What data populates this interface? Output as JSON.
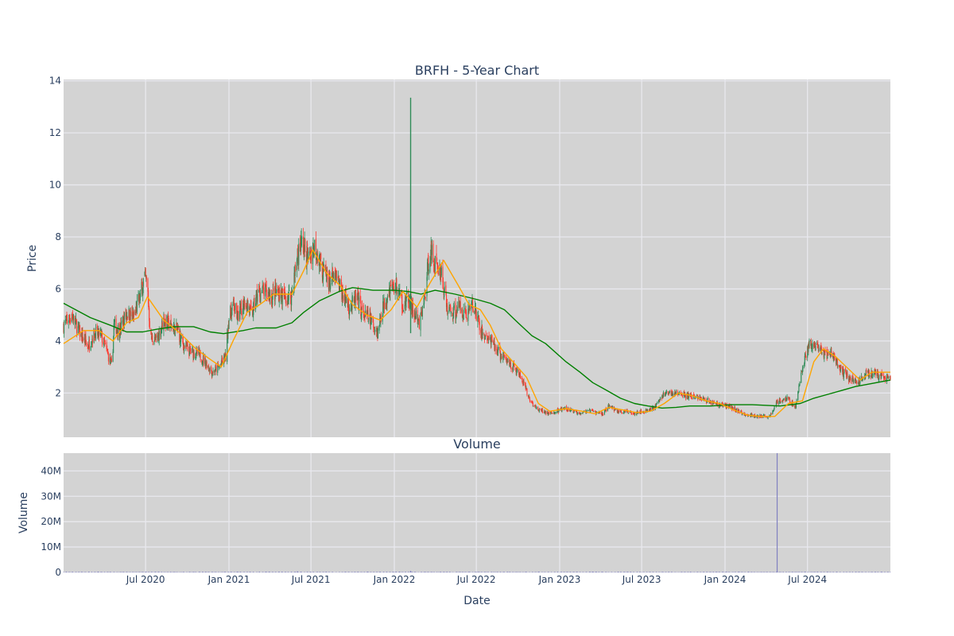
{
  "chart_data": {
    "type": "candlestick",
    "title": "BRFH - 5-Year Chart",
    "xlabel": "Date",
    "x_tick_labels": [
      "Jul 2020",
      "Jan 2021",
      "Jul 2021",
      "Jan 2022",
      "Jul 2022",
      "Jan 2023",
      "Jul 2023",
      "Jan 2024",
      "Jul 2024"
    ],
    "x_ticks": [
      "2020-07-01",
      "2021-01-01",
      "2021-07-01",
      "2022-01-01",
      "2022-07-01",
      "2023-01-01",
      "2023-07-01",
      "2024-01-01",
      "2024-07-01"
    ],
    "x_range": [
      "2020-01-02",
      "2024-12-31"
    ],
    "grid": true,
    "legend": "none",
    "colors": {
      "plot_bg": "#d3d3d3",
      "grid": "#e8e8ee",
      "increasing": "#2e8b57",
      "decreasing": "#ff3b30",
      "ma_short": "#ffa500",
      "ma_long": "#008000",
      "volume": "#8080c0"
    },
    "price_panel": {
      "ylabel": "Price",
      "ylim": [
        0.3,
        14.05
      ],
      "yticks": [
        2,
        4,
        6,
        8,
        10,
        12,
        14
      ],
      "ytick_labels": [
        "2",
        "4",
        "6",
        "8",
        "10",
        "12",
        "14"
      ],
      "close_path": [
        {
          "date": "2020-01-02",
          "close": 4.6
        },
        {
          "date": "2020-01-20",
          "close": 5.0
        },
        {
          "date": "2020-02-10",
          "close": 4.2
        },
        {
          "date": "2020-02-25",
          "close": 3.8
        },
        {
          "date": "2020-03-10",
          "close": 4.3
        },
        {
          "date": "2020-03-25",
          "close": 4.2
        },
        {
          "date": "2020-04-08",
          "close": 3.5
        },
        {
          "date": "2020-04-18",
          "close": 3.0
        },
        {
          "date": "2020-04-22",
          "close": 4.6
        },
        {
          "date": "2020-05-05",
          "close": 4.4
        },
        {
          "date": "2020-05-20",
          "close": 5.1
        },
        {
          "date": "2020-06-05",
          "close": 4.9
        },
        {
          "date": "2020-06-20",
          "close": 5.8
        },
        {
          "date": "2020-06-28",
          "close": 6.5
        },
        {
          "date": "2020-07-05",
          "close": 6.1
        },
        {
          "date": "2020-07-12",
          "close": 4.1
        },
        {
          "date": "2020-07-25",
          "close": 4.0
        },
        {
          "date": "2020-08-10",
          "close": 4.8
        },
        {
          "date": "2020-08-25",
          "close": 4.6
        },
        {
          "date": "2020-09-10",
          "close": 4.4
        },
        {
          "date": "2020-09-20",
          "close": 3.9
        },
        {
          "date": "2020-10-05",
          "close": 3.6
        },
        {
          "date": "2020-10-25",
          "close": 3.5
        },
        {
          "date": "2020-11-10",
          "close": 3.2
        },
        {
          "date": "2020-11-25",
          "close": 2.8
        },
        {
          "date": "2020-12-10",
          "close": 3.0
        },
        {
          "date": "2020-12-25",
          "close": 3.4
        },
        {
          "date": "2020-12-31",
          "close": 4.8
        },
        {
          "date": "2021-01-10",
          "close": 5.4
        },
        {
          "date": "2021-01-20",
          "close": 4.9
        },
        {
          "date": "2021-02-05",
          "close": 5.6
        },
        {
          "date": "2021-02-20",
          "close": 5.0
        },
        {
          "date": "2021-03-05",
          "close": 5.8
        },
        {
          "date": "2021-03-20",
          "close": 5.9
        },
        {
          "date": "2021-04-05",
          "close": 5.7
        },
        {
          "date": "2021-04-20",
          "close": 5.9
        },
        {
          "date": "2021-05-05",
          "close": 5.6
        },
        {
          "date": "2021-05-20",
          "close": 5.8
        },
        {
          "date": "2021-06-01",
          "close": 7.3
        },
        {
          "date": "2021-06-10",
          "close": 7.8
        },
        {
          "date": "2021-06-25",
          "close": 7.2
        },
        {
          "date": "2021-07-10",
          "close": 7.7
        },
        {
          "date": "2021-07-25",
          "close": 6.8
        },
        {
          "date": "2021-08-10",
          "close": 6.3
        },
        {
          "date": "2021-08-25",
          "close": 6.4
        },
        {
          "date": "2021-09-10",
          "close": 5.8
        },
        {
          "date": "2021-09-25",
          "close": 5.3
        },
        {
          "date": "2021-10-10",
          "close": 5.6
        },
        {
          "date": "2021-10-25",
          "close": 5.0
        },
        {
          "date": "2021-11-10",
          "close": 4.8
        },
        {
          "date": "2021-11-25",
          "close": 4.3
        },
        {
          "date": "2021-12-05",
          "close": 5.2
        },
        {
          "date": "2021-12-20",
          "close": 6.0
        },
        {
          "date": "2022-01-05",
          "close": 6.1
        },
        {
          "date": "2022-01-20",
          "close": 5.4
        },
        {
          "date": "2022-02-01",
          "close": 5.6
        },
        {
          "date": "2022-02-10",
          "close": 5.2
        },
        {
          "date": "2022-02-25",
          "close": 4.6
        },
        {
          "date": "2022-03-10",
          "close": 5.8
        },
        {
          "date": "2022-03-20",
          "close": 7.5
        },
        {
          "date": "2022-04-01",
          "close": 7.0
        },
        {
          "date": "2022-04-15",
          "close": 6.6
        },
        {
          "date": "2022-04-28",
          "close": 5.2
        },
        {
          "date": "2022-05-10",
          "close": 5.1
        },
        {
          "date": "2022-05-25",
          "close": 5.3
        },
        {
          "date": "2022-06-10",
          "close": 5.0
        },
        {
          "date": "2022-06-20",
          "close": 5.4
        },
        {
          "date": "2022-06-30",
          "close": 5.1
        },
        {
          "date": "2022-07-10",
          "close": 4.4
        },
        {
          "date": "2022-07-25",
          "close": 4.1
        },
        {
          "date": "2022-08-10",
          "close": 3.8
        },
        {
          "date": "2022-08-25",
          "close": 3.4
        },
        {
          "date": "2022-09-10",
          "close": 3.2
        },
        {
          "date": "2022-09-25",
          "close": 2.9
        },
        {
          "date": "2022-10-10",
          "close": 2.5
        },
        {
          "date": "2022-10-25",
          "close": 1.8
        },
        {
          "date": "2022-11-10",
          "close": 1.4
        },
        {
          "date": "2022-11-25",
          "close": 1.3
        },
        {
          "date": "2022-12-10",
          "close": 1.2
        },
        {
          "date": "2023-01-10",
          "close": 1.4
        },
        {
          "date": "2023-02-10",
          "close": 1.25
        },
        {
          "date": "2023-03-10",
          "close": 1.3
        },
        {
          "date": "2023-04-05",
          "close": 1.2
        },
        {
          "date": "2023-04-20",
          "close": 1.5
        },
        {
          "date": "2023-05-10",
          "close": 1.3
        },
        {
          "date": "2023-06-10",
          "close": 1.25
        },
        {
          "date": "2023-07-10",
          "close": 1.3
        },
        {
          "date": "2023-08-01",
          "close": 1.5
        },
        {
          "date": "2023-08-20",
          "close": 2.0
        },
        {
          "date": "2023-09-10",
          "close": 2.0
        },
        {
          "date": "2023-10-10",
          "close": 1.9
        },
        {
          "date": "2023-11-10",
          "close": 1.8
        },
        {
          "date": "2023-12-10",
          "close": 1.6
        },
        {
          "date": "2024-01-10",
          "close": 1.5
        },
        {
          "date": "2024-02-10",
          "close": 1.2
        },
        {
          "date": "2024-03-10",
          "close": 1.1
        },
        {
          "date": "2024-04-10",
          "close": 1.1
        },
        {
          "date": "2024-04-25",
          "close": 1.7
        },
        {
          "date": "2024-05-15",
          "close": 1.8
        },
        {
          "date": "2024-06-05",
          "close": 1.5
        },
        {
          "date": "2024-06-20",
          "close": 3.0
        },
        {
          "date": "2024-07-05",
          "close": 3.9
        },
        {
          "date": "2024-07-20",
          "close": 3.7
        },
        {
          "date": "2024-08-10",
          "close": 3.5
        },
        {
          "date": "2024-08-25",
          "close": 3.5
        },
        {
          "date": "2024-09-10",
          "close": 2.9
        },
        {
          "date": "2024-10-01",
          "close": 2.6
        },
        {
          "date": "2024-10-20",
          "close": 2.4
        },
        {
          "date": "2024-11-10",
          "close": 2.8
        },
        {
          "date": "2024-12-01",
          "close": 2.7
        },
        {
          "date": "2024-12-31",
          "close": 2.5
        }
      ],
      "spikes": [
        {
          "date": "2022-02-06",
          "high": 13.35,
          "low": 4.3
        }
      ],
      "ma_short": [
        {
          "date": "2020-01-02",
          "value": 3.9
        },
        {
          "date": "2020-02-15",
          "value": 4.4
        },
        {
          "date": "2020-03-20",
          "value": 4.4
        },
        {
          "date": "2020-04-20",
          "value": 4.0
        },
        {
          "date": "2020-05-20",
          "value": 4.7
        },
        {
          "date": "2020-06-15",
          "value": 4.9
        },
        {
          "date": "2020-07-05",
          "value": 5.7
        },
        {
          "date": "2020-08-10",
          "value": 4.8
        },
        {
          "date": "2020-09-15",
          "value": 4.3
        },
        {
          "date": "2020-10-20",
          "value": 3.7
        },
        {
          "date": "2020-11-20",
          "value": 3.3
        },
        {
          "date": "2020-12-15",
          "value": 3.0
        },
        {
          "date": "2021-01-10",
          "value": 4.0
        },
        {
          "date": "2021-02-10",
          "value": 5.1
        },
        {
          "date": "2021-03-10",
          "value": 5.4
        },
        {
          "date": "2021-04-10",
          "value": 5.8
        },
        {
          "date": "2021-05-20",
          "value": 5.8
        },
        {
          "date": "2021-06-15",
          "value": 6.7
        },
        {
          "date": "2021-07-05",
          "value": 7.5
        },
        {
          "date": "2021-08-05",
          "value": 6.6
        },
        {
          "date": "2021-09-05",
          "value": 6.1
        },
        {
          "date": "2021-10-01",
          "value": 5.4
        },
        {
          "date": "2021-11-01",
          "value": 5.0
        },
        {
          "date": "2021-12-01",
          "value": 4.8
        },
        {
          "date": "2021-12-25",
          "value": 5.2
        },
        {
          "date": "2022-01-20",
          "value": 5.9
        },
        {
          "date": "2022-02-20",
          "value": 5.3
        },
        {
          "date": "2022-03-20",
          "value": 6.2
        },
        {
          "date": "2022-04-20",
          "value": 7.1
        },
        {
          "date": "2022-05-20",
          "value": 6.2
        },
        {
          "date": "2022-06-15",
          "value": 5.4
        },
        {
          "date": "2022-07-10",
          "value": 5.2
        },
        {
          "date": "2022-08-01",
          "value": 4.6
        },
        {
          "date": "2022-08-25",
          "value": 3.7
        },
        {
          "date": "2022-09-20",
          "value": 3.2
        },
        {
          "date": "2022-10-20",
          "value": 2.6
        },
        {
          "date": "2022-11-15",
          "value": 1.6
        },
        {
          "date": "2022-12-10",
          "value": 1.3
        },
        {
          "date": "2023-01-15",
          "value": 1.4
        },
        {
          "date": "2023-02-20",
          "value": 1.3
        },
        {
          "date": "2023-03-20",
          "value": 1.2
        },
        {
          "date": "2023-04-20",
          "value": 1.45
        },
        {
          "date": "2023-05-20",
          "value": 1.35
        },
        {
          "date": "2023-06-20",
          "value": 1.25
        },
        {
          "date": "2023-07-20",
          "value": 1.3
        },
        {
          "date": "2023-08-20",
          "value": 1.6
        },
        {
          "date": "2023-09-20",
          "value": 2.0
        },
        {
          "date": "2023-10-20",
          "value": 1.9
        },
        {
          "date": "2023-11-20",
          "value": 1.7
        },
        {
          "date": "2023-12-20",
          "value": 1.6
        },
        {
          "date": "2024-01-20",
          "value": 1.35
        },
        {
          "date": "2024-02-20",
          "value": 1.15
        },
        {
          "date": "2024-03-20",
          "value": 1.1
        },
        {
          "date": "2024-04-20",
          "value": 1.1
        },
        {
          "date": "2024-05-20",
          "value": 1.6
        },
        {
          "date": "2024-06-20",
          "value": 1.7
        },
        {
          "date": "2024-07-15",
          "value": 3.2
        },
        {
          "date": "2024-08-05",
          "value": 3.7
        },
        {
          "date": "2024-09-01",
          "value": 3.4
        },
        {
          "date": "2024-10-01",
          "value": 2.9
        },
        {
          "date": "2024-10-25",
          "value": 2.5
        },
        {
          "date": "2024-11-20",
          "value": 2.8
        },
        {
          "date": "2024-12-31",
          "value": 2.8
        }
      ],
      "ma_long": [
        {
          "date": "2020-01-02",
          "value": 5.45
        },
        {
          "date": "2020-03-01",
          "value": 4.9
        },
        {
          "date": "2020-04-15",
          "value": 4.6
        },
        {
          "date": "2020-05-20",
          "value": 4.35
        },
        {
          "date": "2020-06-25",
          "value": 4.35
        },
        {
          "date": "2020-07-25",
          "value": 4.45
        },
        {
          "date": "2020-09-01",
          "value": 4.55
        },
        {
          "date": "2020-10-15",
          "value": 4.55
        },
        {
          "date": "2020-11-20",
          "value": 4.35
        },
        {
          "date": "2020-12-20",
          "value": 4.28
        },
        {
          "date": "2021-02-01",
          "value": 4.4
        },
        {
          "date": "2021-03-01",
          "value": 4.5
        },
        {
          "date": "2021-04-15",
          "value": 4.5
        },
        {
          "date": "2021-05-20",
          "value": 4.7
        },
        {
          "date": "2021-06-15",
          "value": 5.1
        },
        {
          "date": "2021-07-20",
          "value": 5.55
        },
        {
          "date": "2021-09-01",
          "value": 5.9
        },
        {
          "date": "2021-10-01",
          "value": 6.05
        },
        {
          "date": "2021-11-15",
          "value": 5.95
        },
        {
          "date": "2022-01-01",
          "value": 5.95
        },
        {
          "date": "2022-02-01",
          "value": 5.9
        },
        {
          "date": "2022-03-01",
          "value": 5.8
        },
        {
          "date": "2022-04-01",
          "value": 5.95
        },
        {
          "date": "2022-05-15",
          "value": 5.8
        },
        {
          "date": "2022-07-01",
          "value": 5.6
        },
        {
          "date": "2022-08-01",
          "value": 5.45
        },
        {
          "date": "2022-09-01",
          "value": 5.2
        },
        {
          "date": "2022-10-01",
          "value": 4.7
        },
        {
          "date": "2022-11-01",
          "value": 4.2
        },
        {
          "date": "2022-12-01",
          "value": 3.9
        },
        {
          "date": "2023-01-15",
          "value": 3.2
        },
        {
          "date": "2023-02-15",
          "value": 2.8
        },
        {
          "date": "2023-03-15",
          "value": 2.4
        },
        {
          "date": "2023-04-15",
          "value": 2.1
        },
        {
          "date": "2023-05-15",
          "value": 1.8
        },
        {
          "date": "2023-06-15",
          "value": 1.6
        },
        {
          "date": "2023-07-15",
          "value": 1.5
        },
        {
          "date": "2023-08-15",
          "value": 1.42
        },
        {
          "date": "2023-09-15",
          "value": 1.45
        },
        {
          "date": "2023-10-15",
          "value": 1.5
        },
        {
          "date": "2023-12-01",
          "value": 1.5
        },
        {
          "date": "2024-01-15",
          "value": 1.55
        },
        {
          "date": "2024-03-01",
          "value": 1.55
        },
        {
          "date": "2024-05-01",
          "value": 1.5
        },
        {
          "date": "2024-06-15",
          "value": 1.6
        },
        {
          "date": "2024-07-15",
          "value": 1.8
        },
        {
          "date": "2024-08-15",
          "value": 1.95
        },
        {
          "date": "2024-09-15",
          "value": 2.1
        },
        {
          "date": "2024-10-15",
          "value": 2.25
        },
        {
          "date": "2024-11-15",
          "value": 2.35
        },
        {
          "date": "2024-12-31",
          "value": 2.5
        }
      ]
    },
    "volume_panel": {
      "title": "Volume",
      "ylabel": "Volume",
      "ylim": [
        0,
        47000000
      ],
      "yticks": [
        0,
        10000000,
        20000000,
        30000000,
        40000000
      ],
      "ytick_labels": [
        "0",
        "10M",
        "20M",
        "30M",
        "40M"
      ],
      "spikes": [
        {
          "date": "2024-04-25",
          "value": 47000000
        },
        {
          "date": "2022-02-06",
          "value": 600000
        },
        {
          "date": "2021-06-01",
          "value": 400000
        }
      ]
    }
  }
}
